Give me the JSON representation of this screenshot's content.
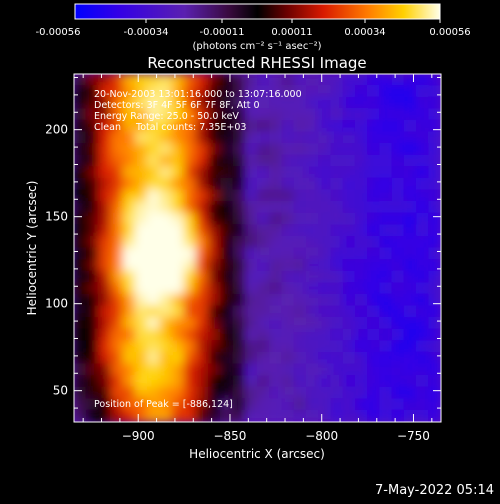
{
  "colorbar": {
    "ticks": [
      "-0.00056",
      "-0.00034",
      "-0.00011",
      "0.00011",
      "0.00034",
      "0.00056"
    ],
    "units": "(photons cm⁻² s⁻¹ asec⁻²)"
  },
  "plot": {
    "title": "Reconstructed RHESSI Image",
    "info_lines": [
      "20-Nov-2003 13:01:16.000 to 13:07:16.000",
      "Detectors: 3F 4F 5F 6F 7F 8F, Att 0",
      "Energy Range: 25.0 - 50.0 keV",
      "Clean     Total counts: 7.35E+03"
    ],
    "peak_label": "Position of Peak = [-886,124]",
    "timestamp": "7-May-2022 05:14"
  },
  "chart_data": {
    "type": "heatmap",
    "title": "Reconstructed RHESSI Image",
    "xlabel": "Heliocentric X (arcsec)",
    "ylabel": "Heliocentric Y (arcsec)",
    "xlim": [
      -935,
      -735
    ],
    "ylim": [
      32,
      232
    ],
    "x_ticks": [
      -900,
      -850,
      -800,
      -750
    ],
    "x_tick_labels": [
      "−900",
      "−850",
      "−800",
      "−750"
    ],
    "y_ticks": [
      50,
      100,
      150,
      200
    ],
    "y_tick_labels": [
      "50",
      "100",
      "150",
      "200"
    ],
    "colorbar_range": [
      -0.00056,
      0.00056
    ],
    "peak": [
      -886,
      124
    ],
    "colors": {
      "background": "#000000",
      "axes": "#ffffff"
    }
  }
}
